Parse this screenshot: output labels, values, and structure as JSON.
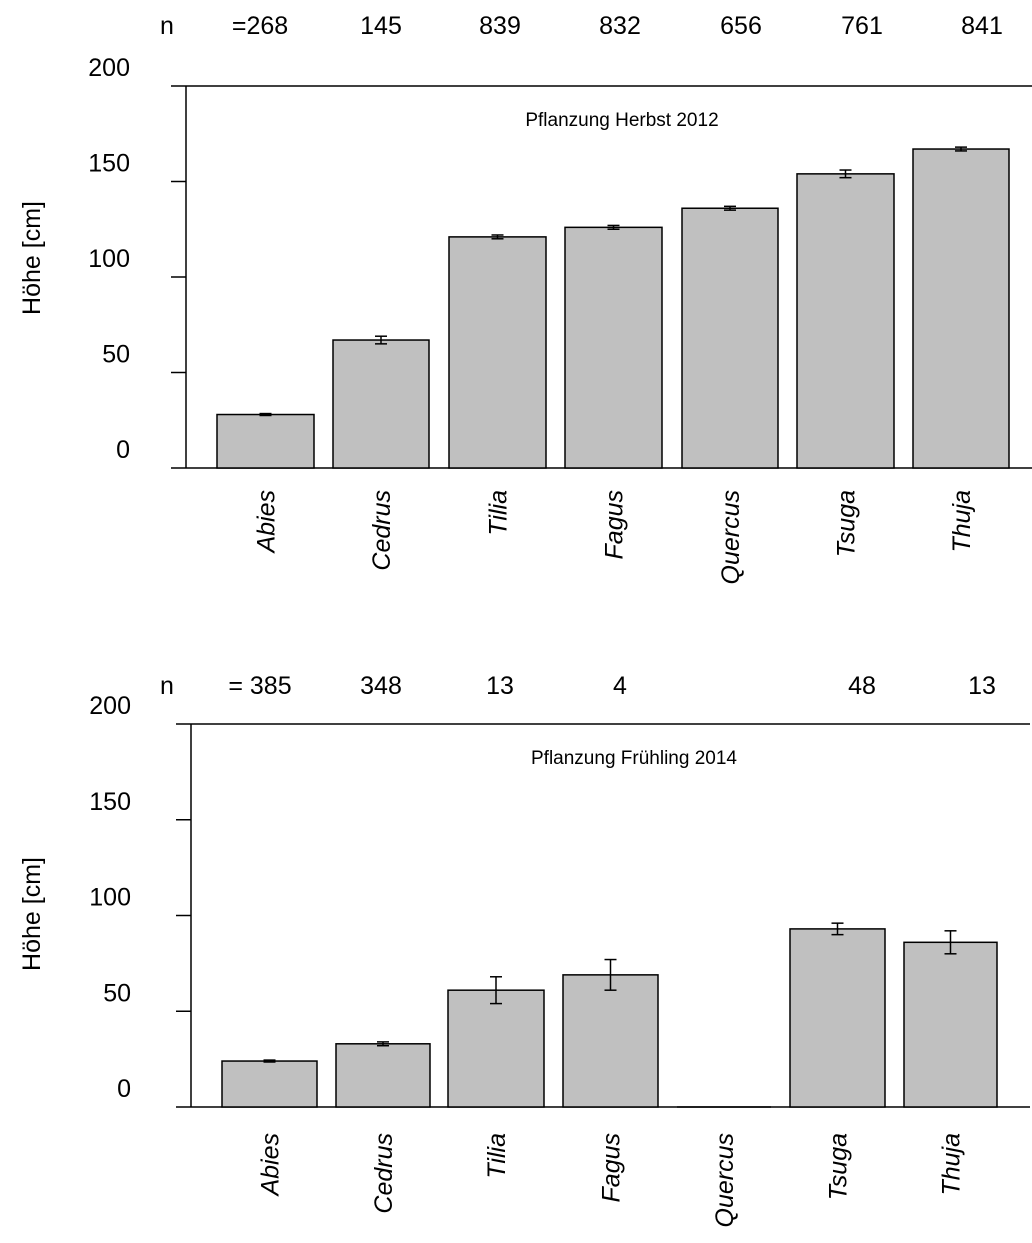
{
  "chart_data": [
    {
      "type": "bar",
      "title": "Pflanzung Herbst 2012",
      "ylabel": "Höhe [cm]",
      "n_prefix": "n",
      "n_labels": [
        "=268",
        "145",
        "839",
        "832",
        "656",
        "761",
        "841"
      ],
      "categories": [
        "Abies",
        "Cedrus",
        "Tilia",
        "Fagus",
        "Quercus",
        "Tsuga",
        "Thuja"
      ],
      "values": [
        28,
        67,
        121,
        126,
        136,
        154,
        167
      ],
      "error": [
        0.5,
        2,
        1,
        1,
        1,
        2,
        1
      ],
      "ylim": [
        0,
        200
      ],
      "yticks": [
        0,
        50,
        100,
        150,
        200
      ],
      "grid": false,
      "bar_color": "#c0c0c0"
    },
    {
      "type": "bar",
      "title": "Pflanzung Frühling 2014",
      "ylabel": "Höhe [cm]",
      "n_prefix": "n",
      "n_labels": [
        "= 385",
        "348",
        "13",
        "4",
        "",
        "48",
        "13"
      ],
      "categories": [
        "Abies",
        "Cedrus",
        "Tilia",
        "Fagus",
        "Quercus",
        "Tsuga",
        "Thuja"
      ],
      "values": [
        24,
        33,
        61,
        69,
        0,
        93,
        86
      ],
      "error": [
        0.5,
        1,
        7,
        8,
        0,
        3,
        6
      ],
      "ylim": [
        0,
        200
      ],
      "yticks": [
        0,
        50,
        100,
        150,
        200
      ],
      "grid": false,
      "bar_color": "#c0c0c0"
    }
  ]
}
